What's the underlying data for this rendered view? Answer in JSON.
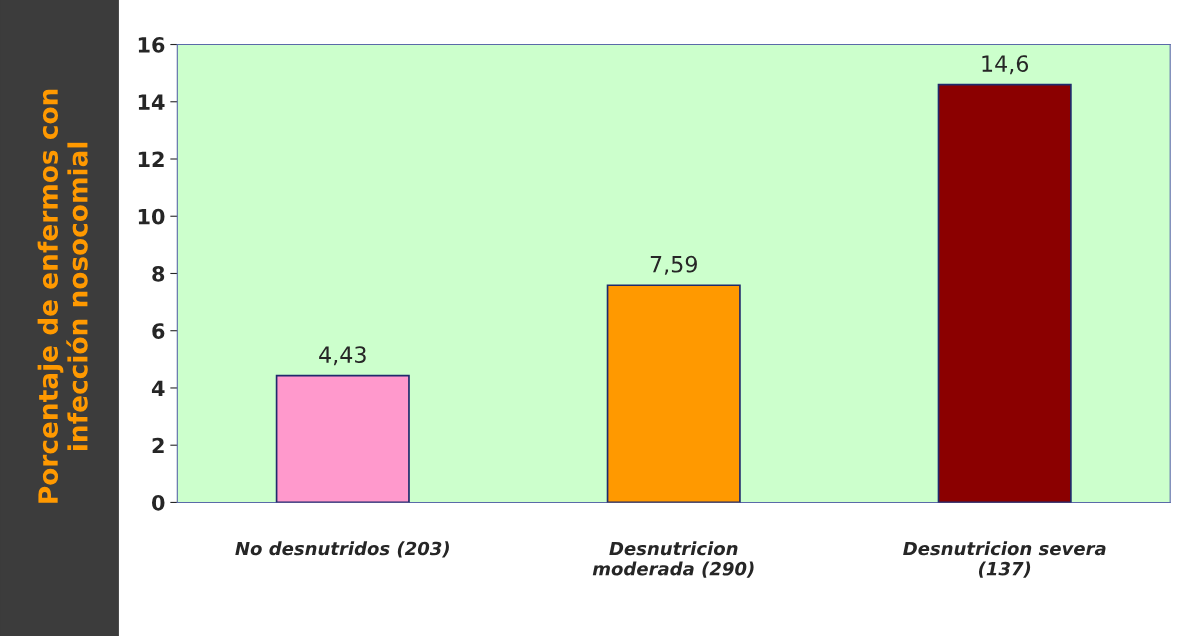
{
  "chart_data": {
    "type": "bar",
    "ylabel": "Porcentaje de enfermos con\ninfección nosocomial",
    "categories": [
      "No desnutridos (203)",
      "Desnutricion\nmoderada (290)",
      "Desnutricion severa\n(137)"
    ],
    "values": [
      4.43,
      7.59,
      14.6
    ],
    "colors": [
      "#ff99cc",
      "#ff9900",
      "#8b0000"
    ],
    "value_labels": [
      "4,43",
      "7,59",
      "14,6"
    ],
    "ylim": [
      0,
      16
    ],
    "yticks": [
      0,
      2,
      4,
      6,
      8,
      10,
      12,
      14,
      16
    ],
    "grid": false,
    "legend": false
  }
}
